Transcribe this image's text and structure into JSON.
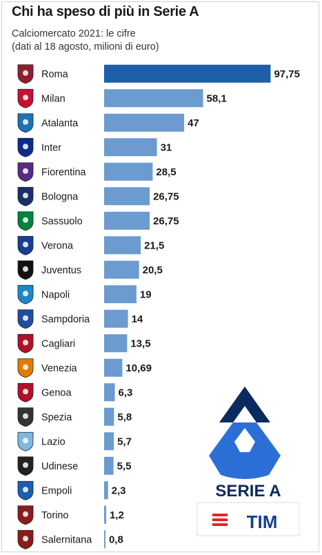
{
  "header": {
    "title": "Chi ha speso di più in Serie A",
    "subtitle_line1": "Calciomercato 2021: le cifre",
    "subtitle_line2": "(dati al 18 agosto, milioni di euro)"
  },
  "colors": {
    "top_bar": "#1d5fa8",
    "bar": "#6b9bcf",
    "logo_navy": "#0b2a5e",
    "logo_blue": "#2b6fd6",
    "tim_red": "#e3262b",
    "tim_blue": "#1a3e8f"
  },
  "logo": {
    "brand_text": "SERIE A",
    "sponsor_text": "TIM"
  },
  "chart_data": {
    "type": "bar",
    "orientation": "horizontal",
    "categories": [
      "Roma",
      "Milan",
      "Atalanta",
      "Inter",
      "Fiorentina",
      "Bologna",
      "Sassuolo",
      "Verona",
      "Juventus",
      "Napoli",
      "Sampdoria",
      "Cagliari",
      "Venezia",
      "Genoa",
      "Spezia",
      "Lazio",
      "Udinese",
      "Empoli",
      "Torino",
      "Salernitana"
    ],
    "values": [
      97.75,
      58.1,
      47,
      31,
      28.5,
      26.75,
      26.75,
      21.5,
      20.5,
      19,
      14,
      13.5,
      10.69,
      6.3,
      5.8,
      5.7,
      5.5,
      2.3,
      1.2,
      0.8
    ],
    "value_labels": [
      "97,75",
      "58,1",
      "47",
      "31",
      "28,5",
      "26,75",
      "26,75",
      "21,5",
      "20,5",
      "19",
      "14",
      "13,5",
      "10,69",
      "6,3",
      "5,8",
      "5,7",
      "5,5",
      "2,3",
      "1,2",
      "0,8"
    ],
    "team_crest_icons": [
      "roma-crest-icon",
      "milan-crest-icon",
      "atalanta-crest-icon",
      "inter-crest-icon",
      "fiorentina-crest-icon",
      "bologna-crest-icon",
      "sassuolo-crest-icon",
      "verona-crest-icon",
      "juventus-crest-icon",
      "napoli-crest-icon",
      "sampdoria-crest-icon",
      "cagliari-crest-icon",
      "venezia-crest-icon",
      "genoa-crest-icon",
      "spezia-crest-icon",
      "lazio-crest-icon",
      "udinese-crest-icon",
      "empoli-crest-icon",
      "torino-crest-icon",
      "salernitana-crest-icon"
    ],
    "crest_colors": [
      "#8e1f2f",
      "#c8102e",
      "#1e71b8",
      "#0a2d8c",
      "#5b2a86",
      "#1a2f6b",
      "#00843d",
      "#1a3e8f",
      "#111111",
      "#1b87c9",
      "#1f4e9e",
      "#b0102a",
      "#e07b00",
      "#b0102a",
      "#333333",
      "#7fb7e3",
      "#222222",
      "#1a5fb4",
      "#8a1c1c",
      "#8a1c1c"
    ],
    "title": "Chi ha speso di più in Serie A",
    "xlabel": "",
    "ylabel": "",
    "xlim": [
      0,
      100
    ],
    "grid": false,
    "legend": "none"
  }
}
